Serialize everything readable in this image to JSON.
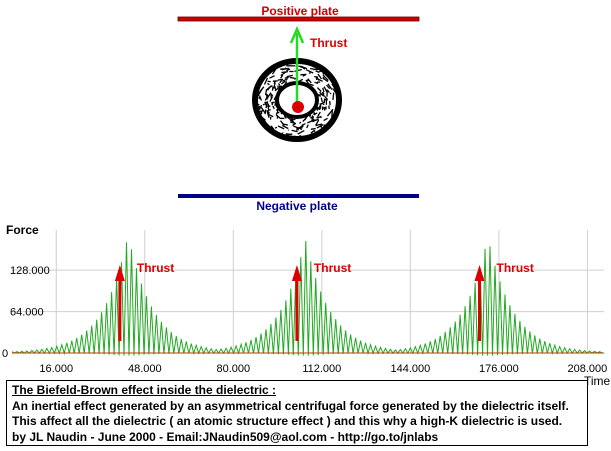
{
  "plates": {
    "positive_label": "Positive plate",
    "negative_label": "Negative plate",
    "positive_color": "#cc0000",
    "negative_color": "#00008b"
  },
  "thrust_label": "Thrust",
  "colors": {
    "thrust": "#dd0000",
    "arrow_up": "#22dd22",
    "signal": "#22aa22",
    "baseline": "#cc3300",
    "dielectric": "#000000"
  },
  "chart_data": {
    "type": "line",
    "ylabel": "Force",
    "xlabel": "Time",
    "y_ticks": [
      "0",
      "64.000",
      "128.000"
    ],
    "x_ticks": [
      "16.000",
      "48.000",
      "80.000",
      "112.000",
      "144.000",
      "176.000",
      "208.000"
    ],
    "xlim": [
      0,
      214
    ],
    "ylim": [
      -5,
      190
    ],
    "bursts": [
      {
        "center": 42,
        "peak": 183
      },
      {
        "center": 106,
        "peak": 177
      },
      {
        "center": 172,
        "peak": 180
      }
    ],
    "annotations": [
      "Thrust",
      "Thrust",
      "Thrust"
    ],
    "grid": true
  },
  "caption": {
    "title": "The Biefeld-Brown effect inside the dielectric :",
    "line1": "An inertial effect generated by an asymmetrical centrifugal force generated by the dielectric itself.",
    "line2": "This affect all the dielectric ( an atomic structure effect ) and this why a high-K dielectric is used.",
    "line3": "by JL Naudin - June 2000 - Email:JNaudin509@aol.com - http://go.to/jnlabs"
  }
}
